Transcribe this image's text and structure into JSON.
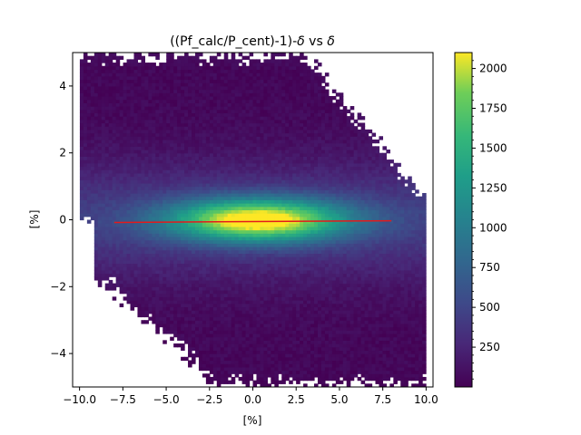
{
  "chart_data": {
    "type": "heatmap",
    "title_parts": [
      "((Pf_calc/P_cent)-1)-",
      "δ",
      " vs ",
      "δ"
    ],
    "xlabel": "[%]",
    "ylabel": "[%]",
    "xlim": [
      -10.4,
      10.4
    ],
    "ylim": [
      -5.0,
      5.0
    ],
    "xticks": [
      -10.0,
      -7.5,
      -5.0,
      -2.5,
      0.0,
      2.5,
      5.0,
      7.5,
      10.0
    ],
    "xtick_labels": [
      "−10.0",
      "−7.5",
      "−5.0",
      "−2.5",
      "0.0",
      "2.5",
      "5.0",
      "7.5",
      "10.0"
    ],
    "yticks": [
      -4,
      -2,
      0,
      2,
      4
    ],
    "ytick_labels": [
      "−4",
      "−2",
      "0",
      "2",
      "4"
    ],
    "colorbar": {
      "min": 0,
      "max": 2100,
      "ticks": [
        250,
        500,
        750,
        1000,
        1250,
        1500,
        1750,
        2000
      ],
      "tick_labels": [
        "250",
        "500",
        "750",
        "1000",
        "1250",
        "1500",
        "1750",
        "2000"
      ],
      "colormap": "viridis"
    },
    "fit_line": {
      "color": "#e41a1c",
      "x": [
        -8.0,
        8.0
      ],
      "y": [
        -0.08,
        -0.03
      ]
    },
    "grid": false
  }
}
